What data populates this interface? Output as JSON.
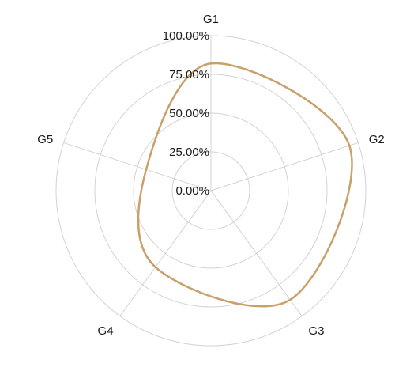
{
  "chart_data": {
    "type": "radar",
    "categories": [
      "G1",
      "G2",
      "G3",
      "G4",
      "G5"
    ],
    "series": [
      {
        "values": [
          0.82,
          0.94,
          0.87,
          0.61,
          0.44
        ],
        "color": "#c8a06a"
      }
    ],
    "r_range": [
      0,
      1
    ],
    "r_ticks": [
      "0.00%",
      "25.00%",
      "50.00%",
      "75.00%",
      "100.00%"
    ],
    "grid": true,
    "smooth": true,
    "legend": "none"
  }
}
